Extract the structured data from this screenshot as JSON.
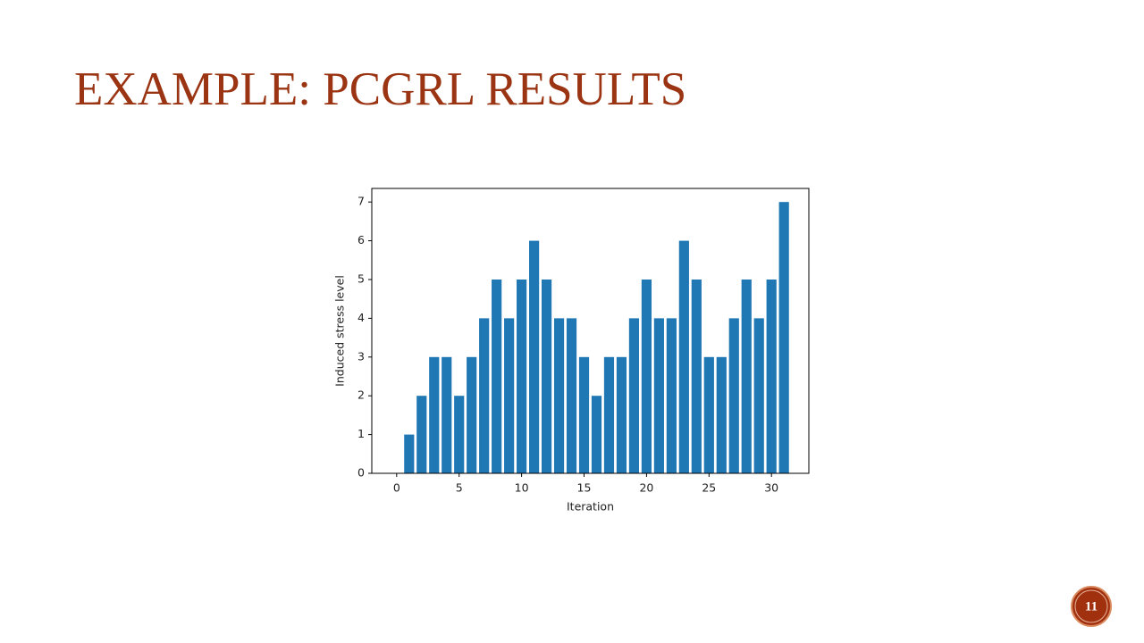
{
  "slide": {
    "title": "EXAMPLE: PCGRL RESULTS",
    "page_number": "11"
  },
  "chart_data": {
    "type": "bar",
    "xlabel": "Iteration",
    "ylabel": "Induced stress level",
    "x": [
      0,
      1,
      2,
      3,
      4,
      5,
      6,
      7,
      8,
      9,
      10,
      11,
      12,
      13,
      14,
      15,
      16,
      17,
      18,
      19,
      20,
      21,
      22,
      23,
      24,
      25,
      26,
      27,
      28,
      29,
      30,
      31
    ],
    "values": [
      0,
      1,
      2,
      3,
      3,
      2,
      3,
      4,
      5,
      4,
      5,
      6,
      5,
      4,
      4,
      3,
      2,
      3,
      3,
      4,
      5,
      4,
      4,
      6,
      5,
      3,
      3,
      4,
      5,
      4,
      5,
      7
    ],
    "color": "#1f77b4",
    "xlim": [
      -1.99,
      32.99
    ],
    "ylim": [
      0,
      7.35
    ],
    "xticks": [
      0,
      5,
      10,
      15,
      20,
      25,
      30
    ],
    "yticks": [
      0,
      1,
      2,
      3,
      4,
      5,
      6,
      7
    ]
  }
}
